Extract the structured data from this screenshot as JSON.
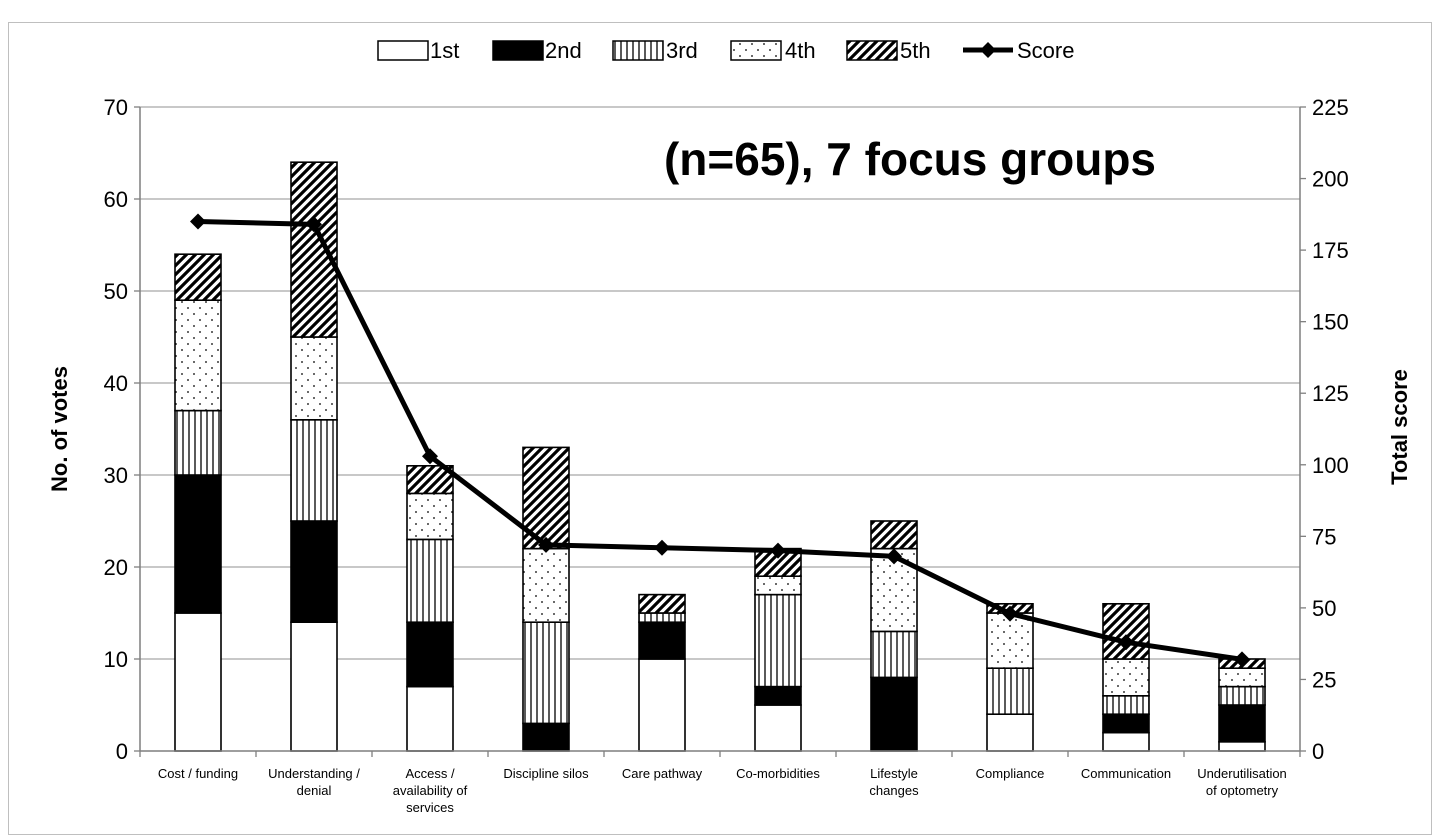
{
  "chart_data": {
    "type": "bar",
    "stacked": true,
    "annotation": "(n=65), 7 focus groups",
    "categories": [
      [
        "Cost / funding"
      ],
      [
        "Understanding /",
        "denial"
      ],
      [
        "Access /",
        "availability of",
        "services"
      ],
      [
        "Discipline silos"
      ],
      [
        "Care pathway"
      ],
      [
        "Co-morbidities"
      ],
      [
        "Lifestyle",
        "changes"
      ],
      [
        "Compliance"
      ],
      [
        "Communication"
      ],
      [
        "Underutilisation",
        "of optometry"
      ]
    ],
    "series": [
      {
        "name": "1st",
        "pattern": "white",
        "values": [
          15,
          14,
          7,
          0,
          10,
          5,
          0,
          4,
          2,
          1
        ]
      },
      {
        "name": "2nd",
        "pattern": "black",
        "values": [
          15,
          11,
          7,
          3,
          4,
          2,
          8,
          0,
          2,
          4
        ]
      },
      {
        "name": "3rd",
        "pattern": "vertical",
        "values": [
          7,
          11,
          9,
          11,
          1,
          10,
          5,
          5,
          2,
          2
        ]
      },
      {
        "name": "4th",
        "pattern": "dots",
        "values": [
          12,
          9,
          5,
          8,
          0,
          2,
          9,
          6,
          4,
          2
        ]
      },
      {
        "name": "5th",
        "pattern": "diagonal",
        "values": [
          5,
          19,
          3,
          11,
          2,
          3,
          3,
          1,
          6,
          1
        ]
      }
    ],
    "line_series": {
      "name": "Score",
      "axis": "right",
      "values": [
        185,
        184,
        103,
        72,
        71,
        70,
        68,
        48,
        38,
        32
      ]
    },
    "ylabel": "No. of votes",
    "y2label": "Total score",
    "ylim": [
      0,
      70
    ],
    "y2lim": [
      0,
      225
    ],
    "yticks": [
      0,
      10,
      20,
      30,
      40,
      50,
      60,
      70
    ],
    "y2ticks": [
      0,
      25,
      50,
      75,
      100,
      125,
      150,
      175,
      200,
      225
    ],
    "grid": "horizontal",
    "legend_position": "top",
    "colors": {
      "bar_fill": "#ffffff",
      "bar_stroke": "#000000",
      "grid": "#a6a6a6",
      "line": "#000000"
    }
  }
}
